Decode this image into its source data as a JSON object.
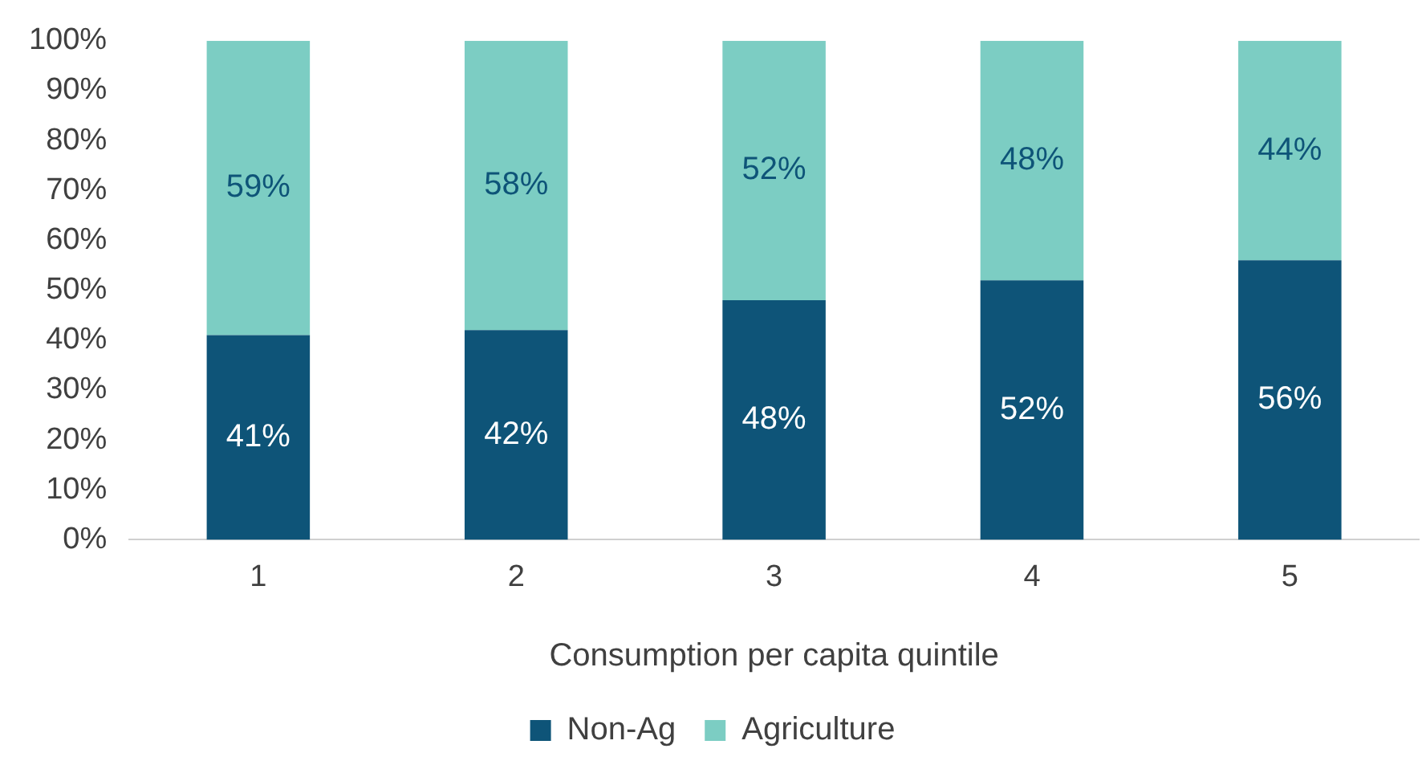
{
  "chart_data": {
    "type": "bar",
    "stacked": true,
    "xlabel": "Consumption per capita quintile",
    "categories": [
      "1",
      "2",
      "3",
      "4",
      "5"
    ],
    "series": [
      {
        "name": "Non-Ag",
        "color": "#0e5478",
        "values": [
          41,
          42,
          48,
          52,
          56
        ],
        "value_labels": [
          "41%",
          "42%",
          "48%",
          "52%",
          "56%"
        ]
      },
      {
        "name": "Agriculture",
        "color": "#7ccdc3",
        "values": [
          59,
          58,
          52,
          48,
          44
        ],
        "value_labels": [
          "59%",
          "58%",
          "52%",
          "48%",
          "44%"
        ]
      }
    ],
    "ylim": [
      0,
      100
    ],
    "yticks": [
      {
        "value": 0,
        "label": "0%"
      },
      {
        "value": 10,
        "label": "10%"
      },
      {
        "value": 20,
        "label": "20%"
      },
      {
        "value": 30,
        "label": "30%"
      },
      {
        "value": 40,
        "label": "40%"
      },
      {
        "value": 50,
        "label": "50%"
      },
      {
        "value": 60,
        "label": "60%"
      },
      {
        "value": 70,
        "label": "70%"
      },
      {
        "value": 80,
        "label": "80%"
      },
      {
        "value": 90,
        "label": "90%"
      },
      {
        "value": 100,
        "label": "100%"
      }
    ],
    "grid": false,
    "legend": "bottom"
  }
}
